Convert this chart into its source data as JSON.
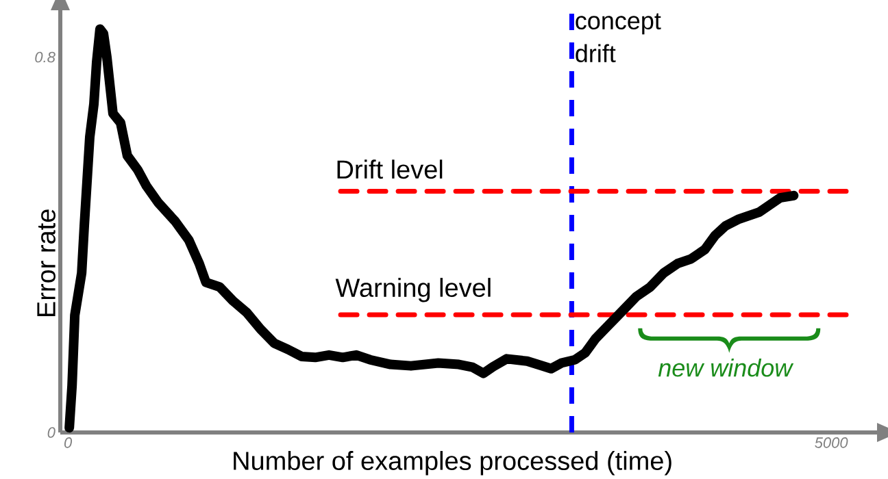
{
  "chart_data": {
    "type": "line",
    "xlabel": "Number of examples processed (time)",
    "ylabel": "Error rate",
    "xlim": [
      -50,
      5300
    ],
    "ylim": [
      0,
      0.9
    ],
    "xticks": [
      0,
      5000
    ],
    "yticks": [
      0,
      0.8
    ],
    "marker": "none",
    "series": [
      {
        "color": "#000000",
        "line_style": "solid",
        "x": [
          9,
          27,
          45,
          90,
          107,
          143,
          170,
          188,
          210,
          233,
          255,
          295,
          345,
          389,
          457,
          515,
          591,
          703,
          792,
          860,
          904,
          994,
          1083,
          1173,
          1262,
          1352,
          1441,
          1531,
          1620,
          1710,
          1800,
          1889,
          1979,
          2113,
          2247,
          2426,
          2560,
          2650,
          2722,
          2784,
          2874,
          3008,
          3098,
          3165,
          3232,
          3321,
          3389,
          3456,
          3545,
          3635,
          3724,
          3814,
          3903,
          3993,
          4082,
          4172,
          4239,
          4306,
          4396,
          4530,
          4664,
          4754
        ],
        "values": [
          0.01,
          0.1,
          0.25,
          0.34,
          0.44,
          0.63,
          0.7,
          0.79,
          0.86,
          0.85,
          0.8,
          0.68,
          0.66,
          0.59,
          0.56,
          0.525,
          0.49,
          0.45,
          0.41,
          0.36,
          0.32,
          0.31,
          0.28,
          0.255,
          0.22,
          0.19,
          0.177,
          0.162,
          0.16,
          0.165,
          0.16,
          0.165,
          0.155,
          0.145,
          0.142,
          0.148,
          0.145,
          0.139,
          0.126,
          0.14,
          0.157,
          0.152,
          0.143,
          0.136,
          0.148,
          0.155,
          0.17,
          0.2,
          0.23,
          0.26,
          0.29,
          0.31,
          0.34,
          0.36,
          0.37,
          0.39,
          0.42,
          0.44,
          0.455,
          0.47,
          0.5,
          0.505
        ]
      },
      {
        "color": "#ff0000",
        "line_style": "dashed",
        "x": [
          1786,
          5098
        ],
        "values": [
          0.514,
          0.514
        ]
      },
      {
        "color": "#ff0000",
        "line_style": "dashed",
        "x": [
          1786,
          5098
        ],
        "values": [
          0.251,
          0.251
        ]
      }
    ],
    "ref_lines": [
      {
        "axis": "x",
        "value": 3300,
        "label": "concept drift",
        "color": "#0000ff",
        "line_style": "dashed"
      }
    ],
    "annotations": [
      {
        "text": "Drift level",
        "x": 1786,
        "y": 0.514
      },
      {
        "text": "Warning level",
        "x": 1786,
        "y": 0.251
      },
      "new window"
    ]
  }
}
